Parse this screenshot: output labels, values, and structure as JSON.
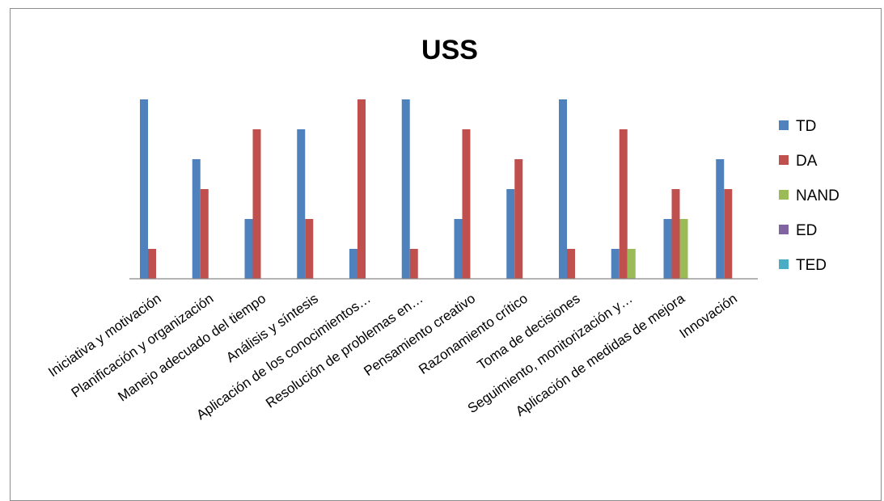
{
  "chart_data": {
    "type": "bar",
    "title": "USS",
    "xlabel": "",
    "ylabel": "",
    "ylim": [
      0,
      6
    ],
    "grid": false,
    "legend_position": "right",
    "categories": [
      "Iniciativa y motivación",
      "Planificación y organización",
      "Manejo adecuado del tiempo",
      "Análisis y síntesis",
      "Aplicación de los conocimientos…",
      "Resolución de problemas en…",
      "Pensamiento creativo",
      "Razonamiento crítico",
      "Toma de decisiones",
      "Seguimiento, monitorización y…",
      "Aplicación de medidas de mejora",
      "Innovación"
    ],
    "series": [
      {
        "name": "TD",
        "color": "#4F81BD",
        "values": [
          6,
          4,
          2,
          5,
          1,
          6,
          2,
          3,
          6,
          1,
          2,
          4
        ]
      },
      {
        "name": "DA",
        "color": "#C0504D",
        "values": [
          1,
          3,
          5,
          2,
          6,
          1,
          5,
          4,
          1,
          5,
          3,
          3
        ]
      },
      {
        "name": "NAND",
        "color": "#9BBB59",
        "values": [
          0,
          0,
          0,
          0,
          0,
          0,
          0,
          0,
          0,
          1,
          2,
          0
        ]
      },
      {
        "name": "ED",
        "color": "#8064A2",
        "values": [
          0,
          0,
          0,
          0,
          0,
          0,
          0,
          0,
          0,
          0,
          0,
          0
        ]
      },
      {
        "name": "TED",
        "color": "#4BACC6",
        "values": [
          0,
          0,
          0,
          0,
          0,
          0,
          0,
          0,
          0,
          0,
          0,
          0
        ]
      }
    ]
  }
}
